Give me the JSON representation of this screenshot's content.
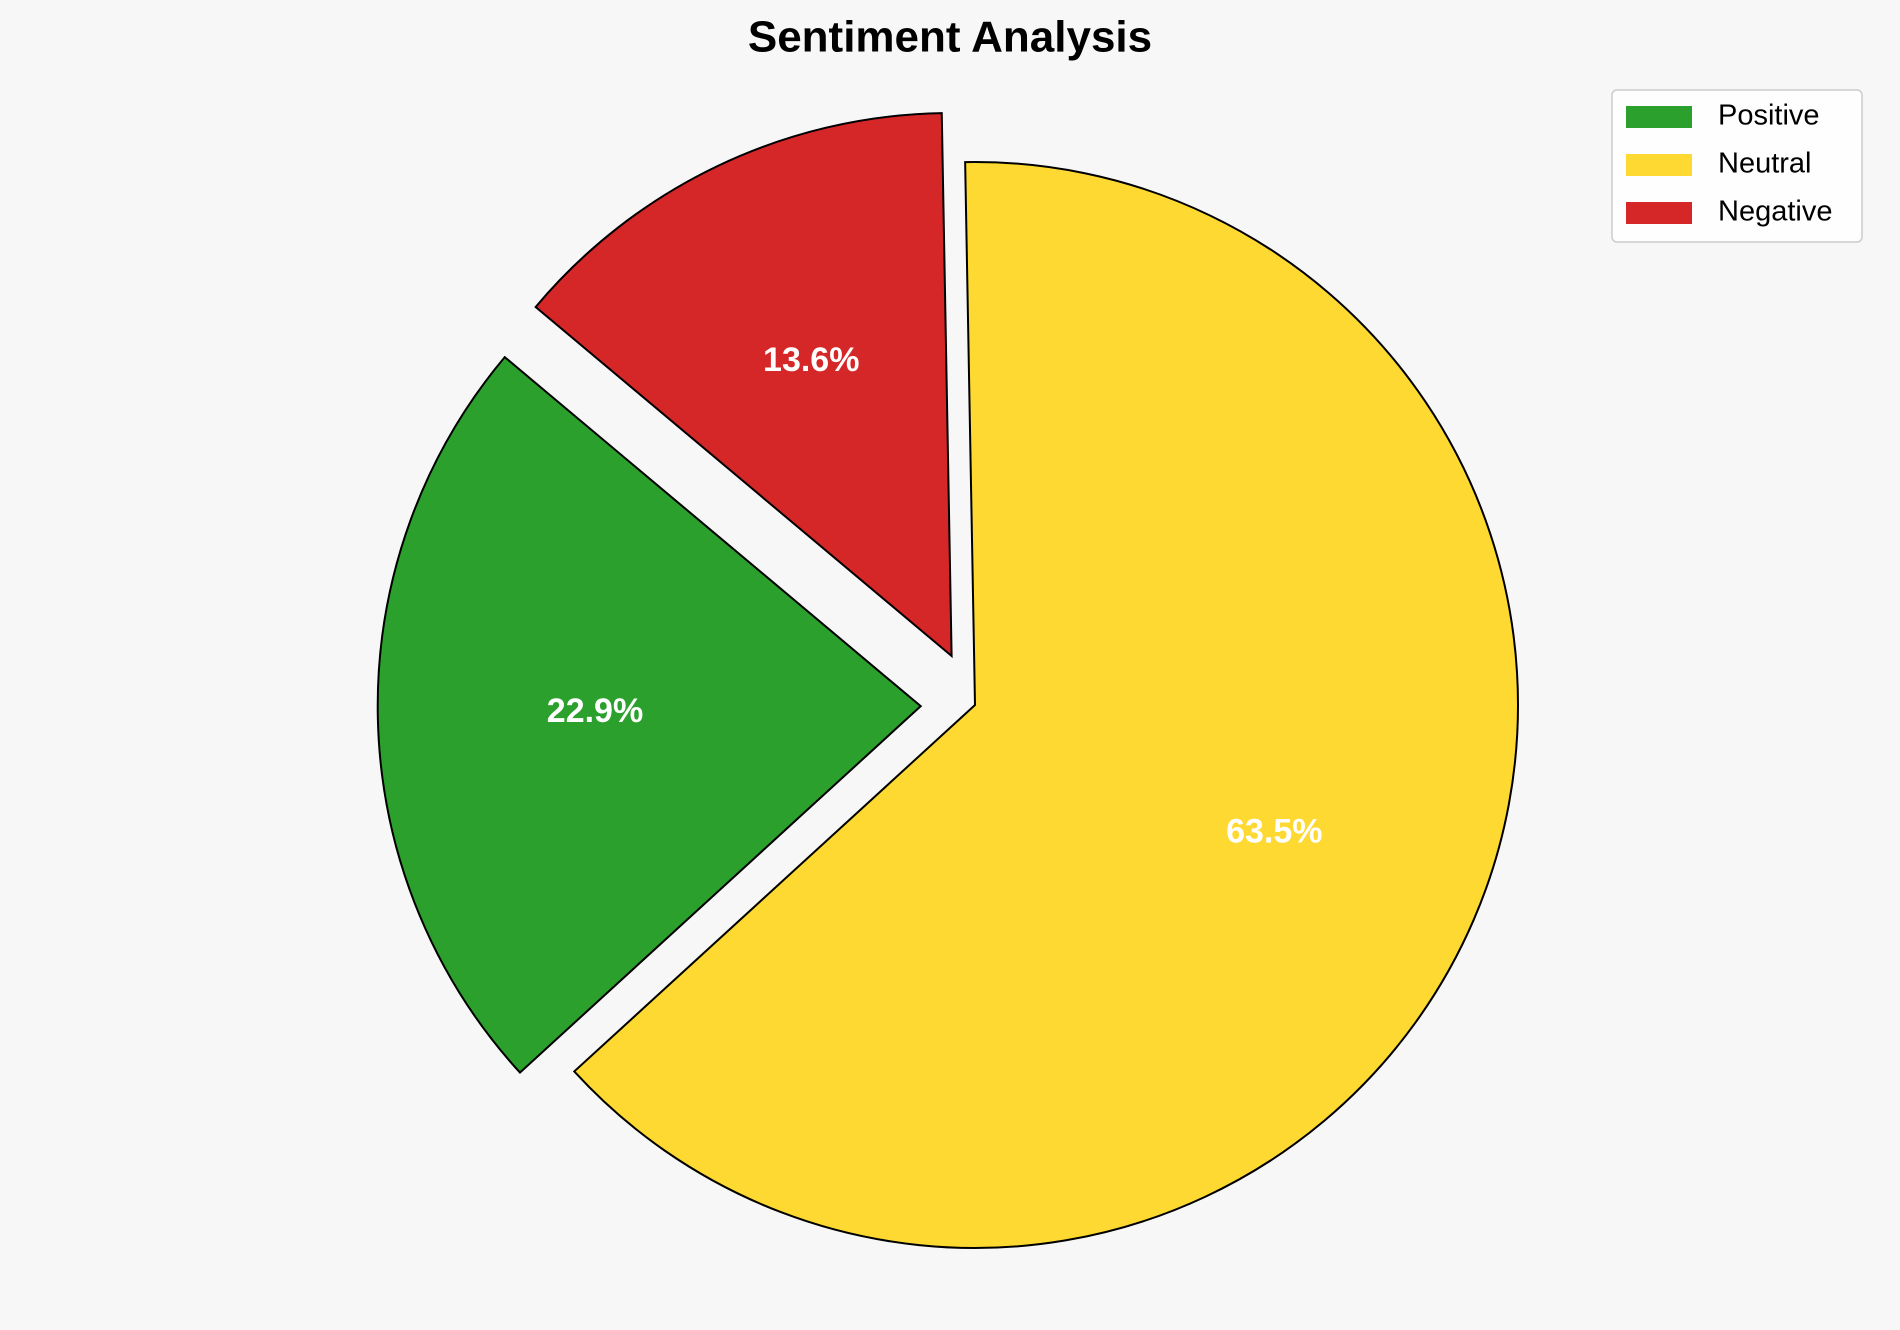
{
  "chart_data": {
    "type": "pie",
    "title": "Sentiment Analysis",
    "categories": [
      "Positive",
      "Neutral",
      "Negative"
    ],
    "values": [
      22.9,
      63.5,
      13.6
    ],
    "value_labels": [
      "22.9%",
      "63.5%",
      "13.6%"
    ],
    "colors": [
      "#2ca02c",
      "#fdd931",
      "#d62728"
    ],
    "explode": [
      0.1,
      0,
      0.1
    ],
    "startangle": 140,
    "legend": "upper right"
  }
}
